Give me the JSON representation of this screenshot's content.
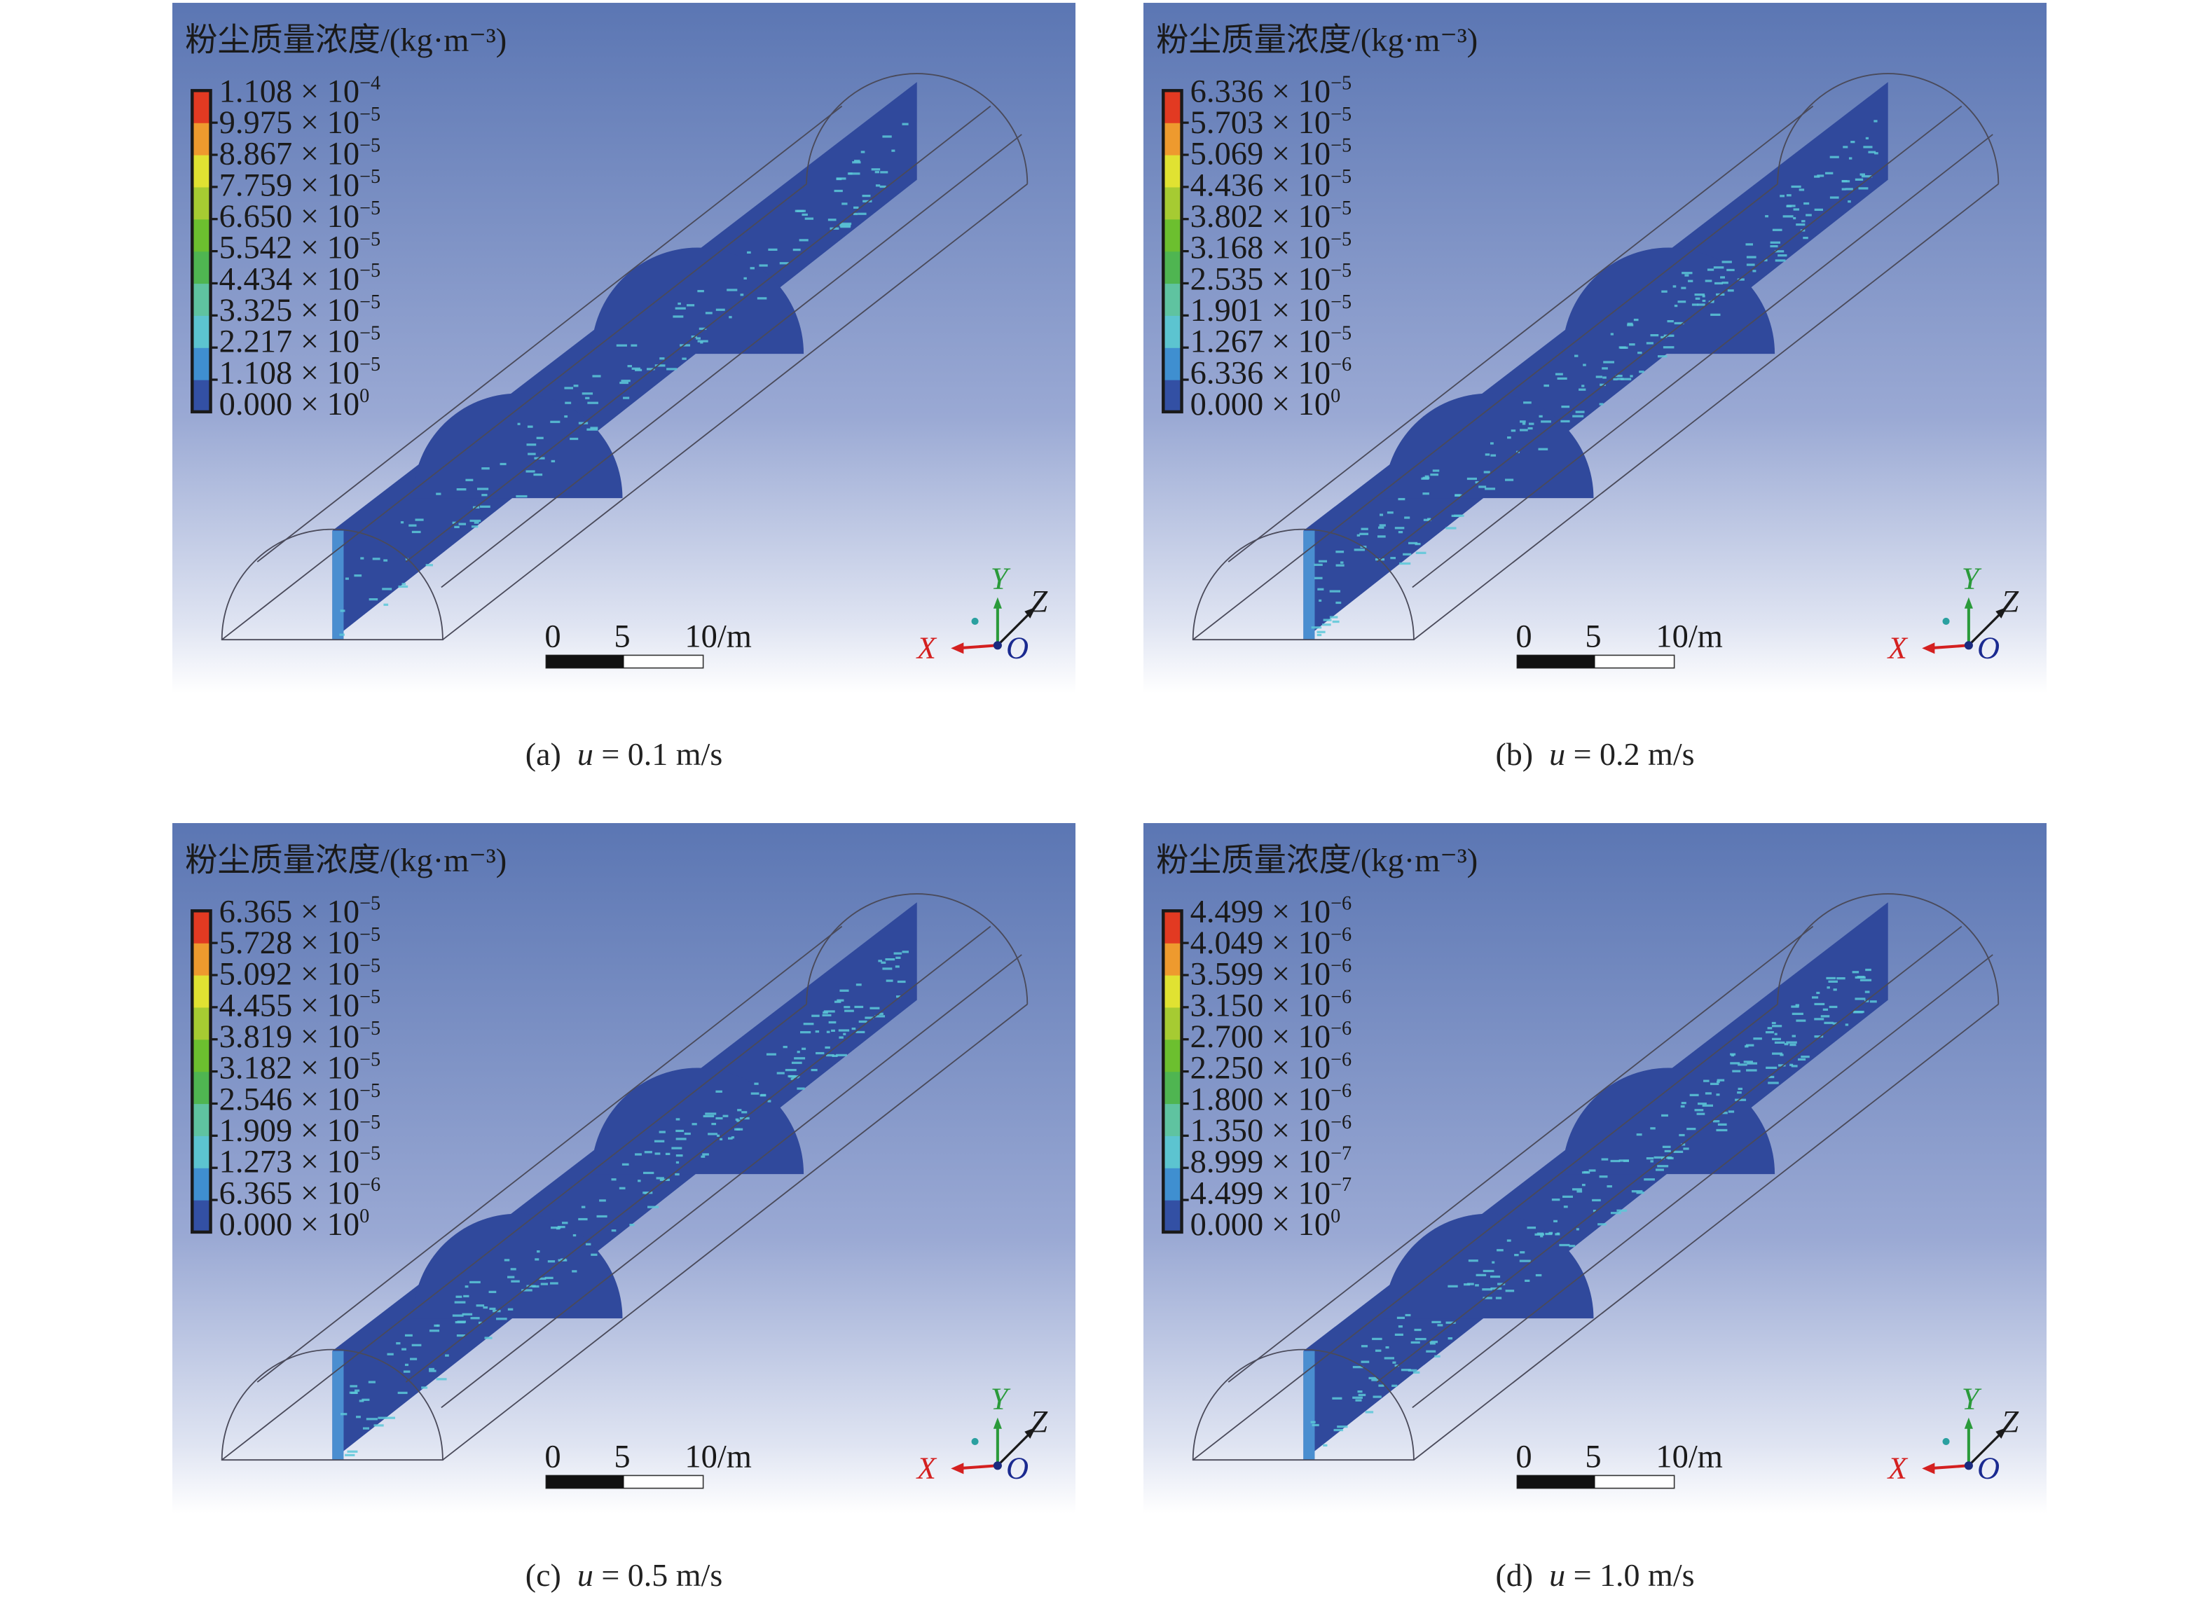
{
  "legend_title": "粉尘质量浓度/(kg·m⁻³)",
  "legend_colors": [
    "#3350a4",
    "#3f8fd0",
    "#5cc4d0",
    "#5fc3a0",
    "#4fb551",
    "#6cbf2f",
    "#a6cb32",
    "#e0e232",
    "#ee9a2e",
    "#e23a22"
  ],
  "scale_bar": {
    "labels": [
      "0",
      "5",
      "10/m"
    ]
  },
  "axes": {
    "x": "X",
    "y": "Y",
    "z": "Z",
    "origin": "O",
    "x_color": "#d42020",
    "y_color": "#2a9a3a",
    "z_color": "#1a1a1a"
  },
  "slice_color": "#30499c",
  "speckle_color": "#5cc8d8",
  "panels": [
    {
      "caption": {
        "label": "(a)",
        "var": "u",
        "value": "= 0.1 m/s"
      },
      "legend": [
        {
          "m": "1.108",
          "e": "−4"
        },
        {
          "m": "9.975",
          "e": "−5"
        },
        {
          "m": "8.867",
          "e": "−5"
        },
        {
          "m": "7.759",
          "e": "−5"
        },
        {
          "m": "6.650",
          "e": "−5"
        },
        {
          "m": "5.542",
          "e": "−5"
        },
        {
          "m": "4.434",
          "e": "−5"
        },
        {
          "m": "3.325",
          "e": "−5"
        },
        {
          "m": "2.217",
          "e": "−5"
        },
        {
          "m": "1.108",
          "e": "−5"
        },
        {
          "m": "0.000",
          "e": "0"
        }
      ],
      "dust_level": 0.25
    },
    {
      "caption": {
        "label": "(b)",
        "var": "u",
        "value": "= 0.2 m/s"
      },
      "legend": [
        {
          "m": "6.336",
          "e": "−5"
        },
        {
          "m": "5.703",
          "e": "−5"
        },
        {
          "m": "5.069",
          "e": "−5"
        },
        {
          "m": "4.436",
          "e": "−5"
        },
        {
          "m": "3.802",
          "e": "−5"
        },
        {
          "m": "3.168",
          "e": "−5"
        },
        {
          "m": "2.535",
          "e": "−5"
        },
        {
          "m": "1.901",
          "e": "−5"
        },
        {
          "m": "1.267",
          "e": "−5"
        },
        {
          "m": "6.336",
          "e": "−6"
        },
        {
          "m": "0.000",
          "e": "0"
        }
      ],
      "dust_level": 0.5
    },
    {
      "caption": {
        "label": "(c)",
        "var": "u",
        "value": "= 0.5 m/s"
      },
      "legend": [
        {
          "m": "6.365",
          "e": "−5"
        },
        {
          "m": "5.728",
          "e": "−5"
        },
        {
          "m": "5.092",
          "e": "−5"
        },
        {
          "m": "4.455",
          "e": "−5"
        },
        {
          "m": "3.819",
          "e": "−5"
        },
        {
          "m": "3.182",
          "e": "−5"
        },
        {
          "m": "2.546",
          "e": "−5"
        },
        {
          "m": "1.909",
          "e": "−5"
        },
        {
          "m": "1.273",
          "e": "−5"
        },
        {
          "m": "6.365",
          "e": "−6"
        },
        {
          "m": "0.000",
          "e": "0"
        }
      ],
      "dust_level": 0.5
    },
    {
      "caption": {
        "label": "(d)",
        "var": "u",
        "value": "= 1.0 m/s"
      },
      "legend": [
        {
          "m": "4.499",
          "e": "−6"
        },
        {
          "m": "4.049",
          "e": "−6"
        },
        {
          "m": "3.599",
          "e": "−6"
        },
        {
          "m": "3.150",
          "e": "−6"
        },
        {
          "m": "2.700",
          "e": "−6"
        },
        {
          "m": "2.250",
          "e": "−6"
        },
        {
          "m": "1.800",
          "e": "−6"
        },
        {
          "m": "1.350",
          "e": "−6"
        },
        {
          "m": "8.999",
          "e": "−7"
        },
        {
          "m": "4.499",
          "e": "−7"
        },
        {
          "m": "0.000",
          "e": "0"
        }
      ],
      "dust_level": 0.55
    }
  ]
}
